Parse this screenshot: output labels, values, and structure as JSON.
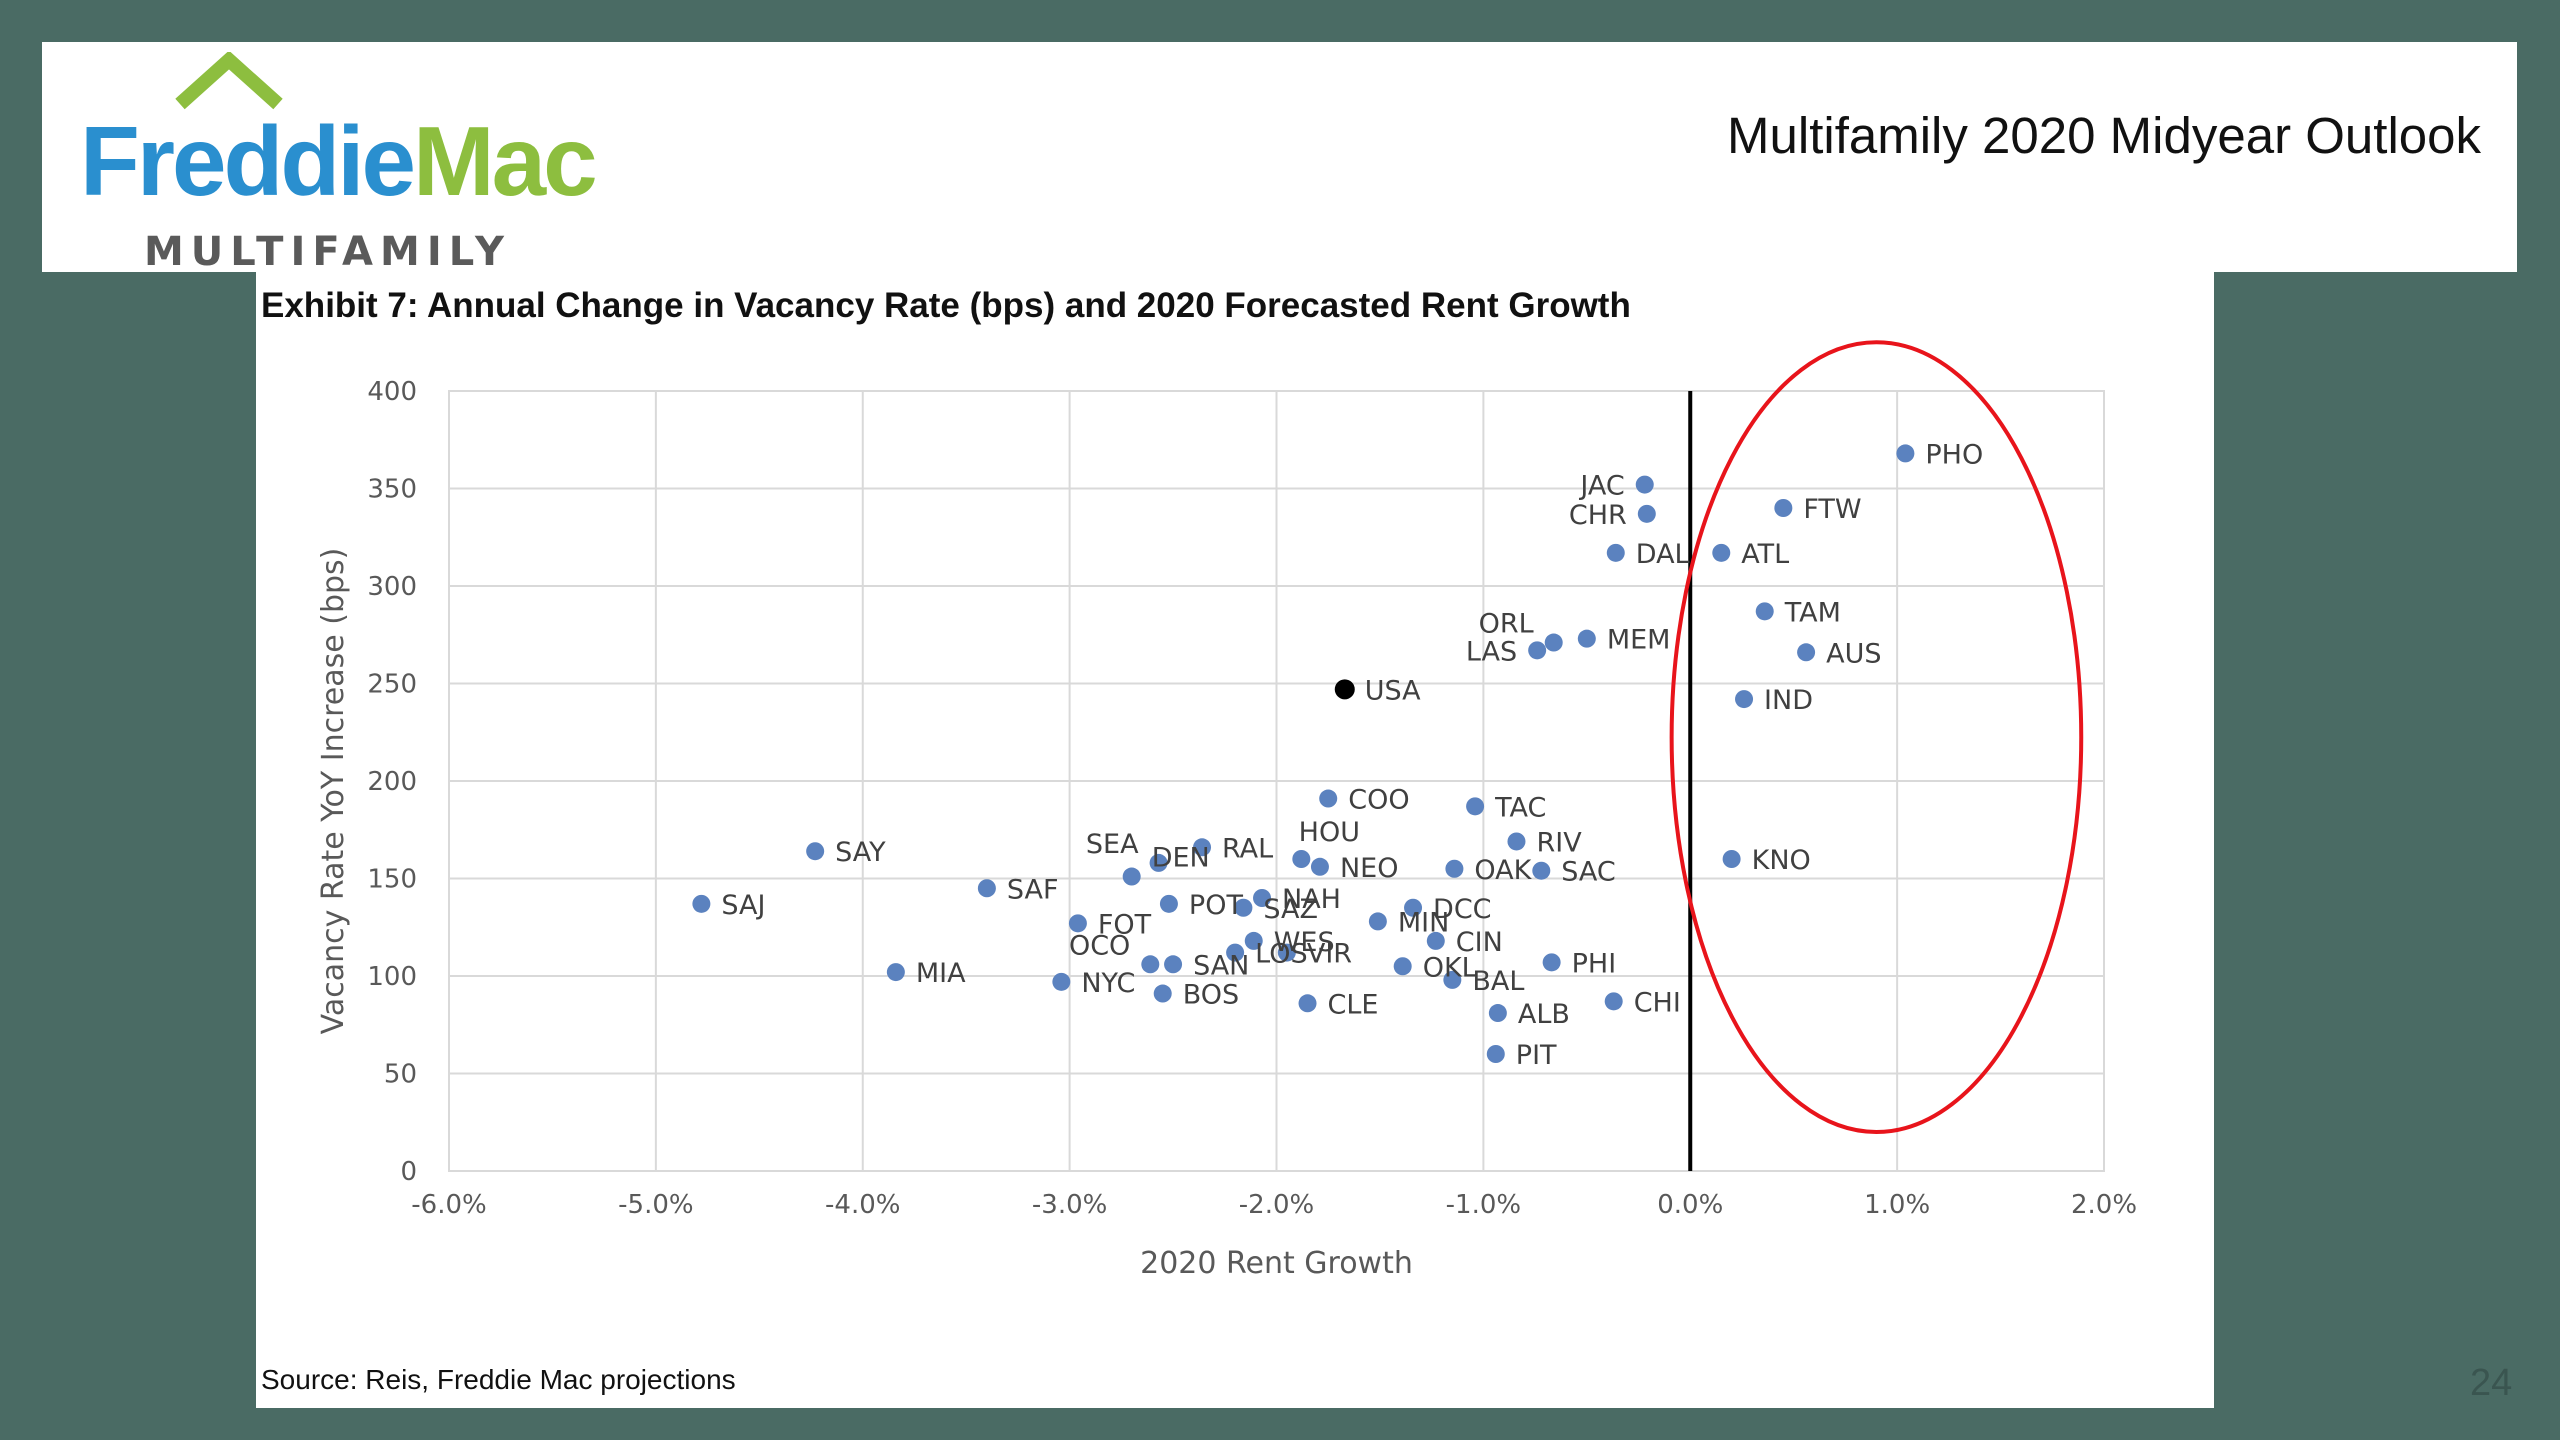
{
  "header": {
    "logo": {
      "word1": "Freddie",
      "word2": "Mac",
      "sub": "MULTIFAMILY"
    },
    "title": "Multifamily 2020 Midyear Outlook"
  },
  "colors": {
    "background": "#4a6b64",
    "logo_blue": "#2a8fcf",
    "logo_green": "#8dbe3f",
    "point": "#5b82bf",
    "usa_point": "#000000",
    "highlight_ellipse": "#e8141b"
  },
  "exhibit_title": "Exhibit 7: Annual Change in Vacancy Rate (bps) and 2020 Forecasted Rent Growth",
  "source": "Source: Reis, Freddie Mac projections",
  "page_number": "24",
  "chart_data": {
    "type": "scatter",
    "xlabel": "2020 Rent Growth",
    "ylabel": "Vacancy Rate YoY Increase (bps)",
    "xlim": [
      -0.06,
      0.02
    ],
    "ylim": [
      0,
      400
    ],
    "x_ticks": [
      -0.06,
      -0.05,
      -0.04,
      -0.03,
      -0.02,
      -0.01,
      0.0,
      0.01,
      0.02
    ],
    "x_tick_labels": [
      "-6.0%",
      "-5.0%",
      "-4.0%",
      "-3.0%",
      "-2.0%",
      "-1.0%",
      "0.0%",
      "1.0%",
      "2.0%"
    ],
    "y_ticks": [
      0,
      50,
      100,
      150,
      200,
      250,
      300,
      350,
      400
    ],
    "y_tick_labels": [
      "0",
      "50",
      "100",
      "150",
      "200",
      "250",
      "300",
      "350",
      "400"
    ],
    "grid": true,
    "reference_line_x": 0.0,
    "highlight": {
      "shape": "ellipse",
      "region": "positive rent growth"
    },
    "points": [
      {
        "label": "PHO",
        "x": 0.0104,
        "y": 368,
        "dx": 1,
        "dy": 0
      },
      {
        "label": "JAC",
        "x": -0.0022,
        "y": 352,
        "dx": -1,
        "dy": 0
      },
      {
        "label": "FTW",
        "x": 0.0045,
        "y": 340,
        "dx": 1,
        "dy": 0
      },
      {
        "label": "CHR",
        "x": -0.0021,
        "y": 337,
        "dx": -1,
        "dy": 0
      },
      {
        "label": "DAL",
        "x": -0.0036,
        "y": 317,
        "dx": 1,
        "dy": 0
      },
      {
        "label": "ATL",
        "x": 0.0015,
        "y": 317,
        "dx": 1,
        "dy": 0
      },
      {
        "label": "TAM",
        "x": 0.0036,
        "y": 287,
        "dx": 1,
        "dy": 0
      },
      {
        "label": "ORL",
        "x": -0.0066,
        "y": 271,
        "dx": -1,
        "dy": -1
      },
      {
        "label": "MEM",
        "x": -0.005,
        "y": 273,
        "dx": 1,
        "dy": 0
      },
      {
        "label": "LAS",
        "x": -0.0074,
        "y": 267,
        "dx": -1,
        "dy": 0
      },
      {
        "label": "AUS",
        "x": 0.0056,
        "y": 266,
        "dx": 1,
        "dy": 0
      },
      {
        "label": "USA",
        "x": -0.0167,
        "y": 247,
        "dx": 1,
        "dy": 0
      },
      {
        "label": "IND",
        "x": 0.0026,
        "y": 242,
        "dx": 1,
        "dy": 0
      },
      {
        "label": "COO",
        "x": -0.0175,
        "y": 191,
        "dx": 1,
        "dy": 0
      },
      {
        "label": "TAC",
        "x": -0.0104,
        "y": 187,
        "dx": 1,
        "dy": 0
      },
      {
        "label": "RIV",
        "x": -0.0084,
        "y": 169,
        "dx": 1,
        "dy": 0
      },
      {
        "label": "SAY",
        "x": -0.0423,
        "y": 164,
        "dx": 1,
        "dy": 0
      },
      {
        "label": "RAL",
        "x": -0.0236,
        "y": 166,
        "dx": 1,
        "dy": 0
      },
      {
        "label": "SEA",
        "x": -0.0257,
        "y": 158,
        "dx": -1,
        "dy": -1
      },
      {
        "label": "HOU",
        "x": -0.0188,
        "y": 160,
        "dx": 0,
        "dy": -1
      },
      {
        "label": "NEO",
        "x": -0.0179,
        "y": 156,
        "dx": 1,
        "dy": 0
      },
      {
        "label": "KNO",
        "x": 0.002,
        "y": 160,
        "dx": 1,
        "dy": 0
      },
      {
        "label": "DEN",
        "x": -0.027,
        "y": 151,
        "dx": 1,
        "dy": -1
      },
      {
        "label": "OAK",
        "x": -0.0114,
        "y": 155,
        "dx": 1,
        "dy": 0
      },
      {
        "label": "SAC",
        "x": -0.0072,
        "y": 154,
        "dx": 1,
        "dy": 0
      },
      {
        "label": "SAF",
        "x": -0.034,
        "y": 145,
        "dx": 1,
        "dy": 0
      },
      {
        "label": "SAJ",
        "x": -0.0478,
        "y": 137,
        "dx": 1,
        "dy": 0
      },
      {
        "label": "NAH",
        "x": -0.0207,
        "y": 140,
        "dx": 1,
        "dy": 0
      },
      {
        "label": "POT",
        "x": -0.0252,
        "y": 137,
        "dx": 1,
        "dy": 0
      },
      {
        "label": "SAZ",
        "x": -0.0216,
        "y": 135,
        "dx": 1,
        "dy": 0
      },
      {
        "label": "DCC",
        "x": -0.0134,
        "y": 135,
        "dx": 1,
        "dy": 0
      },
      {
        "label": "MIN",
        "x": -0.0151,
        "y": 128,
        "dx": 1,
        "dy": 0
      },
      {
        "label": "FOT",
        "x": -0.0296,
        "y": 127,
        "dx": 1,
        "dy": 0
      },
      {
        "label": "WES",
        "x": -0.0211,
        "y": 118,
        "dx": 1,
        "dy": 0
      },
      {
        "label": "CIN",
        "x": -0.0123,
        "y": 118,
        "dx": 1,
        "dy": 0
      },
      {
        "label": "LOS",
        "x": -0.022,
        "y": 112,
        "dx": 1,
        "dy": 0
      },
      {
        "label": "VIR",
        "x": -0.0195,
        "y": 112,
        "dx": 1,
        "dy": 0
      },
      {
        "label": "OCO",
        "x": -0.0261,
        "y": 106,
        "dx": -1,
        "dy": -1
      },
      {
        "label": "SAN",
        "x": -0.025,
        "y": 106,
        "dx": 1,
        "dy": 0
      },
      {
        "label": "OKL",
        "x": -0.0139,
        "y": 105,
        "dx": 1,
        "dy": 0
      },
      {
        "label": "PHI",
        "x": -0.0067,
        "y": 107,
        "dx": 1,
        "dy": 0
      },
      {
        "label": "MIA",
        "x": -0.0384,
        "y": 102,
        "dx": 1,
        "dy": 0
      },
      {
        "label": "BAL",
        "x": -0.0115,
        "y": 98,
        "dx": 1,
        "dy": 0
      },
      {
        "label": "NYC",
        "x": -0.0304,
        "y": 97,
        "dx": 1,
        "dy": 0
      },
      {
        "label": "BOS",
        "x": -0.0255,
        "y": 91,
        "dx": 1,
        "dy": 0
      },
      {
        "label": "CLE",
        "x": -0.0185,
        "y": 86,
        "dx": 1,
        "dy": 0
      },
      {
        "label": "CHI",
        "x": -0.0037,
        "y": 87,
        "dx": 1,
        "dy": 0
      },
      {
        "label": "ALB",
        "x": -0.0093,
        "y": 81,
        "dx": 1,
        "dy": 0
      },
      {
        "label": "PIT",
        "x": -0.0094,
        "y": 60,
        "dx": 1,
        "dy": 0
      }
    ]
  }
}
